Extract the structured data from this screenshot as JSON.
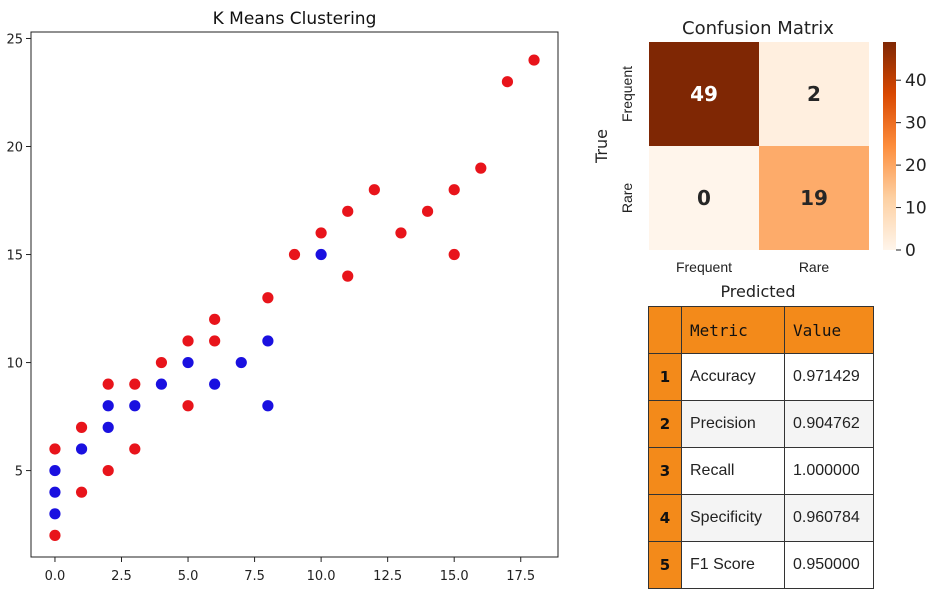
{
  "chart_data": [
    {
      "type": "scatter",
      "title": "K Means Clustering",
      "xlabel": "",
      "ylabel": "",
      "xlim": [
        -0.9,
        18.9
      ],
      "ylim": [
        1.0,
        25.3
      ],
      "xticks": [
        0.0,
        2.5,
        5.0,
        7.5,
        10.0,
        12.5,
        15.0,
        17.5
      ],
      "xtick_labels": [
        "0.0",
        "2.5",
        "5.0",
        "7.5",
        "10.0",
        "12.5",
        "15.0",
        "17.5"
      ],
      "yticks": [
        5,
        10,
        15,
        20,
        25
      ],
      "ytick_labels": [
        "5",
        "10",
        "15",
        "20",
        "25"
      ],
      "series": [
        {
          "name": "cluster-red",
          "color": "#e8141b",
          "points": [
            [
              0,
              6
            ],
            [
              0,
              2
            ],
            [
              1,
              7
            ],
            [
              1,
              4
            ],
            [
              2,
              9
            ],
            [
              2,
              5
            ],
            [
              3,
              9
            ],
            [
              3,
              6
            ],
            [
              4,
              10
            ],
            [
              5,
              11
            ],
            [
              5,
              8
            ],
            [
              6,
              12
            ],
            [
              6,
              11
            ],
            [
              8,
              13
            ],
            [
              9,
              15
            ],
            [
              10,
              16
            ],
            [
              11,
              17
            ],
            [
              11,
              14
            ],
            [
              12,
              18
            ],
            [
              13,
              16
            ],
            [
              14,
              17
            ],
            [
              15,
              18
            ],
            [
              15,
              15
            ],
            [
              16,
              19
            ],
            [
              17,
              23
            ],
            [
              18,
              24
            ]
          ]
        },
        {
          "name": "cluster-blue",
          "color": "#1a10e0",
          "points": [
            [
              0,
              5
            ],
            [
              0,
              4
            ],
            [
              0,
              3
            ],
            [
              1,
              6
            ],
            [
              2,
              8
            ],
            [
              2,
              7
            ],
            [
              3,
              8
            ],
            [
              4,
              9
            ],
            [
              5,
              10
            ],
            [
              6,
              9
            ],
            [
              7,
              10
            ],
            [
              8,
              11
            ],
            [
              8,
              8
            ],
            [
              10,
              15
            ]
          ]
        }
      ]
    },
    {
      "type": "heatmap",
      "title": "Confusion Matrix",
      "xlabel": "Predicted",
      "ylabel": "True",
      "x_categories": [
        "Frequent",
        "Rare"
      ],
      "y_categories": [
        "Frequent",
        "Rare"
      ],
      "values": [
        [
          49,
          2
        ],
        [
          0,
          19
        ]
      ],
      "value_labels": [
        [
          "49",
          "2"
        ],
        [
          "0",
          "19"
        ]
      ],
      "colorbar": {
        "min": 0,
        "max": 49,
        "ticks": [
          0,
          10,
          20,
          30,
          40
        ],
        "tick_labels": [
          "0",
          "10",
          "20",
          "30",
          "40"
        ]
      },
      "colormap": [
        "#fff5eb",
        "#fdd0a2",
        "#fd8d3c",
        "#d94801",
        "#7f2704"
      ]
    }
  ],
  "metrics_table": {
    "headers": {
      "metric": "Metric",
      "value": "Value"
    },
    "rows": [
      {
        "index": "1",
        "metric": "Accuracy",
        "value": "0.971429"
      },
      {
        "index": "2",
        "metric": "Precision",
        "value": "0.904762"
      },
      {
        "index": "3",
        "metric": "Recall",
        "value": "1.000000"
      },
      {
        "index": "4",
        "metric": "Specificity",
        "value": "0.960784"
      },
      {
        "index": "5",
        "metric": "F1 Score",
        "value": "0.950000"
      }
    ]
  }
}
